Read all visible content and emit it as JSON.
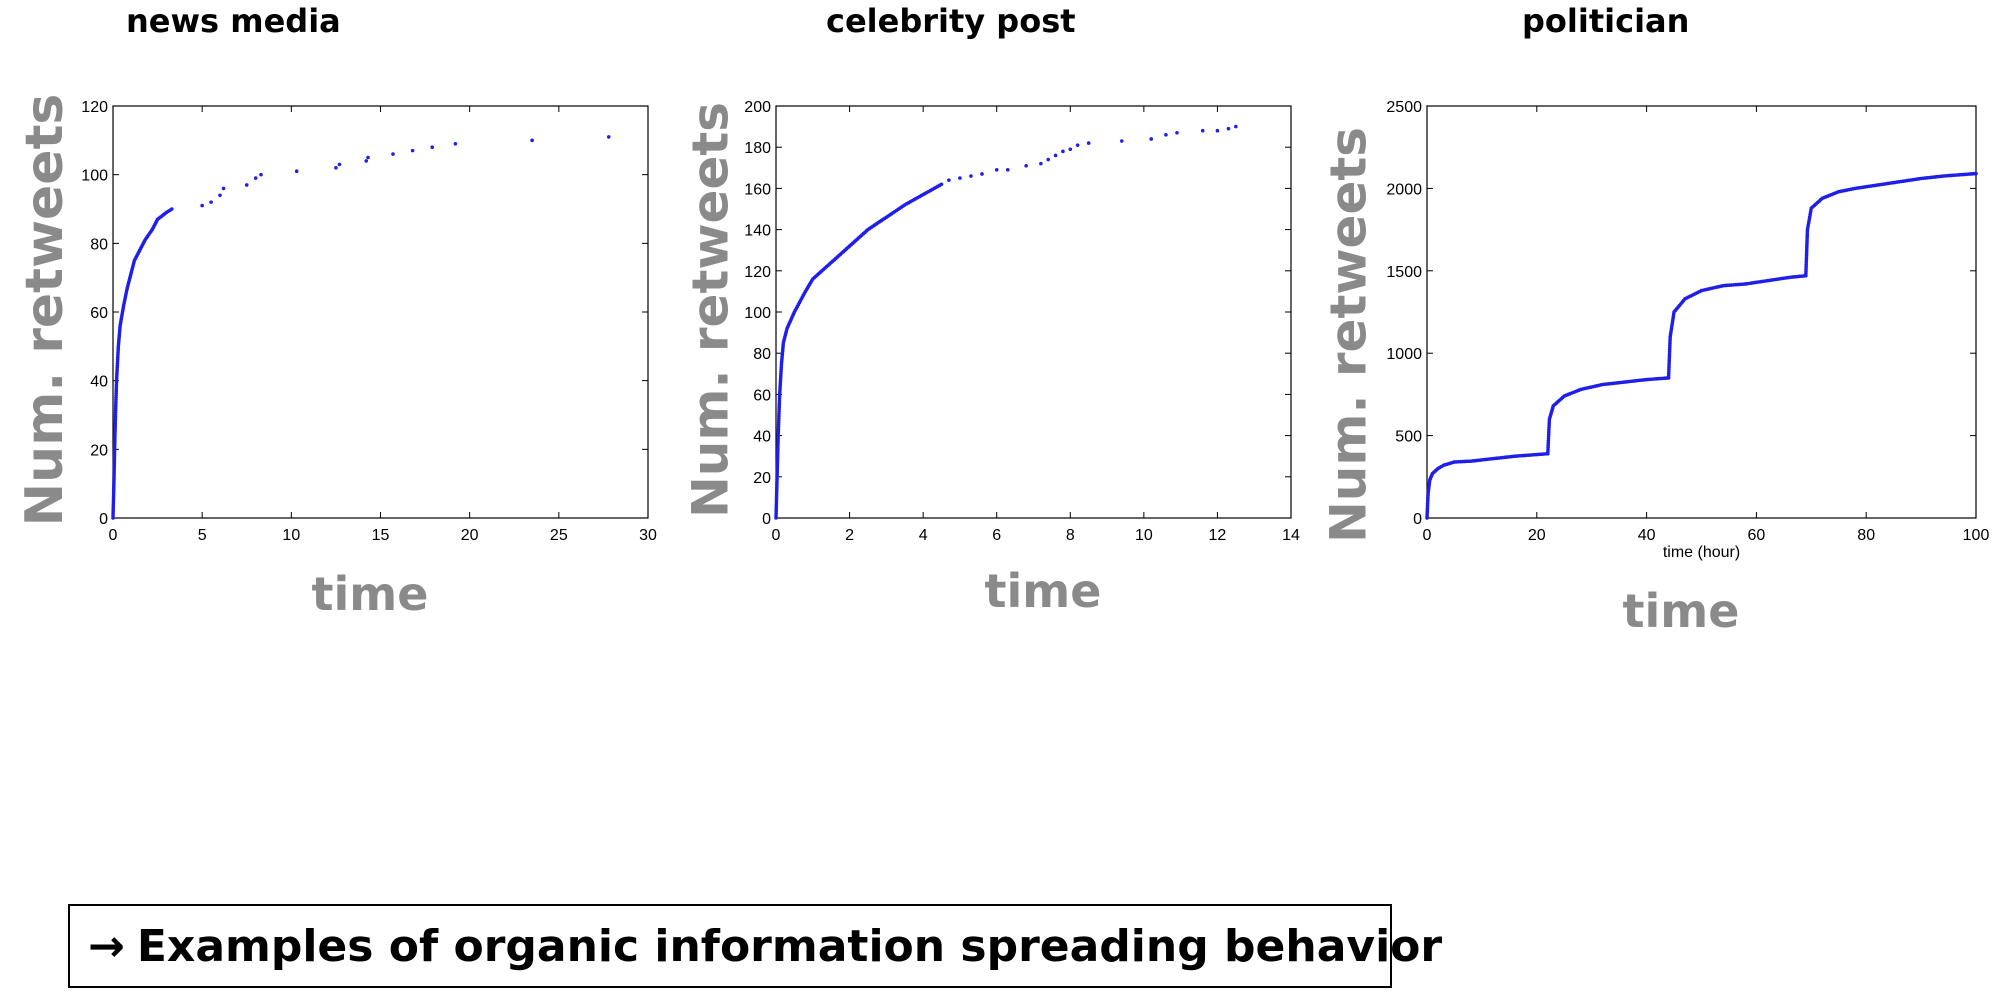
{
  "caption": {
    "arrow": "→",
    "text": "Examples of organic information spreading behavior"
  },
  "colors": {
    "points": "#1f1fe8",
    "big_label": "#8a8a8a",
    "axes": "#000000"
  },
  "chart_data": [
    {
      "type": "scatter",
      "title": "news media",
      "xlabel": "time",
      "ylabel": "Num. retweets",
      "xlim": [
        0,
        30
      ],
      "ylim": [
        0,
        120
      ],
      "xticks": [
        0,
        5,
        10,
        15,
        20,
        25,
        30
      ],
      "yticks": [
        0,
        20,
        40,
        60,
        80,
        100,
        120
      ],
      "curve": [
        [
          0,
          0
        ],
        [
          0.05,
          10
        ],
        [
          0.1,
          22
        ],
        [
          0.15,
          32
        ],
        [
          0.2,
          40
        ],
        [
          0.3,
          50
        ],
        [
          0.4,
          56
        ],
        [
          0.6,
          62
        ],
        [
          0.8,
          67
        ],
        [
          1.0,
          71
        ],
        [
          1.2,
          75
        ],
        [
          1.5,
          78
        ],
        [
          1.8,
          81
        ],
        [
          2.2,
          84
        ],
        [
          2.5,
          87
        ],
        [
          3.0,
          89
        ],
        [
          3.3,
          90
        ]
      ],
      "points": [
        [
          5,
          91
        ],
        [
          5.5,
          92
        ],
        [
          6,
          94
        ],
        [
          6.2,
          96
        ],
        [
          7.5,
          97
        ],
        [
          8,
          99
        ],
        [
          8.3,
          100
        ],
        [
          10.3,
          101
        ],
        [
          12.5,
          102
        ],
        [
          12.7,
          103
        ],
        [
          14.2,
          104
        ],
        [
          14.3,
          105
        ],
        [
          15.7,
          106
        ],
        [
          16.8,
          107
        ],
        [
          17.9,
          108
        ],
        [
          19.2,
          109
        ],
        [
          23.5,
          110
        ],
        [
          27.8,
          111
        ]
      ]
    },
    {
      "type": "scatter",
      "title": "celebrity post",
      "xlabel": "time",
      "ylabel": "Num. retweets",
      "xlim": [
        0,
        14
      ],
      "ylim": [
        0,
        200
      ],
      "xticks": [
        0,
        2,
        4,
        6,
        8,
        10,
        12,
        14
      ],
      "yticks": [
        0,
        20,
        40,
        60,
        80,
        100,
        120,
        140,
        160,
        180,
        200
      ],
      "curve": [
        [
          0,
          0
        ],
        [
          0.03,
          20
        ],
        [
          0.06,
          40
        ],
        [
          0.1,
          60
        ],
        [
          0.15,
          75
        ],
        [
          0.2,
          85
        ],
        [
          0.3,
          92
        ],
        [
          0.5,
          100
        ],
        [
          0.8,
          110
        ],
        [
          1.0,
          116
        ],
        [
          1.5,
          124
        ],
        [
          2.0,
          132
        ],
        [
          2.5,
          140
        ],
        [
          3.0,
          146
        ],
        [
          3.5,
          152
        ],
        [
          4.0,
          157
        ],
        [
          4.5,
          162
        ]
      ],
      "points": [
        [
          4.7,
          164
        ],
        [
          5.0,
          165
        ],
        [
          5.3,
          166
        ],
        [
          5.6,
          167
        ],
        [
          6.0,
          169
        ],
        [
          6.3,
          169
        ],
        [
          6.8,
          171
        ],
        [
          7.2,
          172
        ],
        [
          7.4,
          174
        ],
        [
          7.6,
          176
        ],
        [
          7.8,
          178
        ],
        [
          8.0,
          179
        ],
        [
          8.2,
          181
        ],
        [
          8.5,
          182
        ],
        [
          9.4,
          183
        ],
        [
          10.2,
          184
        ],
        [
          10.6,
          186
        ],
        [
          10.9,
          187
        ],
        [
          11.6,
          188
        ],
        [
          12.0,
          188
        ],
        [
          12.3,
          189
        ],
        [
          12.5,
          190
        ]
      ]
    },
    {
      "type": "scatter",
      "title": "politician",
      "xlabel": "time",
      "sub_xlabel": "time (hour)",
      "ylabel": "Num. retweets",
      "xlim": [
        0,
        100
      ],
      "ylim": [
        0,
        2500
      ],
      "xticks": [
        0,
        20,
        40,
        60,
        80,
        100
      ],
      "yticks": [
        0,
        500,
        1000,
        1500,
        2000,
        2500
      ],
      "segments": [
        [
          [
            0,
            0
          ],
          [
            0.2,
            150
          ],
          [
            0.5,
            230
          ],
          [
            1,
            270
          ],
          [
            2,
            300
          ],
          [
            3,
            320
          ],
          [
            4,
            330
          ],
          [
            5,
            340
          ],
          [
            8,
            345
          ],
          [
            12,
            360
          ],
          [
            16,
            375
          ],
          [
            20,
            385
          ],
          [
            22,
            390
          ]
        ],
        [
          [
            22,
            390
          ],
          [
            22.3,
            600
          ],
          [
            23,
            680
          ],
          [
            25,
            740
          ],
          [
            28,
            780
          ],
          [
            32,
            810
          ],
          [
            36,
            825
          ],
          [
            40,
            840
          ],
          [
            44,
            850
          ]
        ],
        [
          [
            44,
            850
          ],
          [
            44.3,
            1100
          ],
          [
            45,
            1250
          ],
          [
            47,
            1330
          ],
          [
            50,
            1380
          ],
          [
            54,
            1410
          ],
          [
            58,
            1420
          ],
          [
            62,
            1440
          ],
          [
            66,
            1460
          ],
          [
            69,
            1470
          ]
        ],
        [
          [
            69,
            1470
          ],
          [
            69.3,
            1750
          ],
          [
            70,
            1880
          ],
          [
            72,
            1940
          ],
          [
            75,
            1980
          ],
          [
            78,
            2000
          ],
          [
            82,
            2020
          ],
          [
            86,
            2040
          ],
          [
            90,
            2060
          ],
          [
            94,
            2075
          ],
          [
            98,
            2085
          ],
          [
            100,
            2090
          ]
        ]
      ]
    }
  ]
}
